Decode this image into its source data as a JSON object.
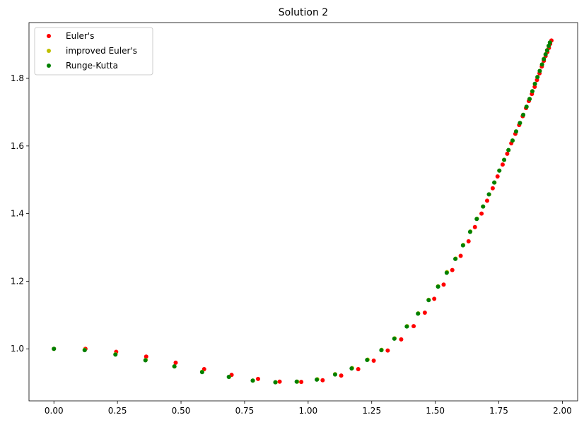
{
  "chart_data": {
    "type": "scatter",
    "title": "Solution 2",
    "xlabel": "",
    "ylabel": "",
    "xlim": [
      -0.098,
      2.06
    ],
    "ylim": [
      0.846,
      1.965
    ],
    "xticks": [
      "0.00",
      "0.25",
      "0.50",
      "0.75",
      "1.00",
      "1.25",
      "1.50",
      "1.75",
      "2.00"
    ],
    "xtick_values": [
      0,
      0.25,
      0.5,
      0.75,
      1.0,
      1.25,
      1.5,
      1.75,
      2.0
    ],
    "yticks": [
      "1.0",
      "1.2",
      "1.4",
      "1.6",
      "1.8"
    ],
    "ytick_values": [
      1.0,
      1.2,
      1.4,
      1.6,
      1.8
    ],
    "grid": false,
    "legend_position": "top-left",
    "series": [
      {
        "name": "Euler's",
        "color": "#ff0000",
        "points": [
          [
            0.0,
            1.0
          ],
          [
            0.124,
            1.0
          ],
          [
            0.245,
            0.991
          ],
          [
            0.363,
            0.977
          ],
          [
            0.479,
            0.959
          ],
          [
            0.591,
            0.94
          ],
          [
            0.699,
            0.923
          ],
          [
            0.803,
            0.911
          ],
          [
            0.888,
            0.903
          ],
          [
            0.973,
            0.902
          ],
          [
            1.057,
            0.907
          ],
          [
            1.13,
            0.921
          ],
          [
            1.197,
            0.94
          ],
          [
            1.258,
            0.965
          ],
          [
            1.313,
            0.995
          ],
          [
            1.366,
            1.028
          ],
          [
            1.415,
            1.067
          ],
          [
            1.459,
            1.107
          ],
          [
            1.496,
            1.148
          ],
          [
            1.533,
            1.19
          ],
          [
            1.567,
            1.233
          ],
          [
            1.6,
            1.275
          ],
          [
            1.631,
            1.318
          ],
          [
            1.656,
            1.36
          ],
          [
            1.682,
            1.4
          ],
          [
            1.704,
            1.438
          ],
          [
            1.726,
            1.475
          ],
          [
            1.745,
            1.51
          ],
          [
            1.765,
            1.545
          ],
          [
            1.783,
            1.577
          ],
          [
            1.799,
            1.608
          ],
          [
            1.815,
            1.636
          ],
          [
            1.83,
            1.662
          ],
          [
            1.844,
            1.688
          ],
          [
            1.857,
            1.712
          ],
          [
            1.868,
            1.733
          ],
          [
            1.88,
            1.754
          ],
          [
            1.891,
            1.775
          ],
          [
            1.9,
            1.795
          ],
          [
            1.91,
            1.815
          ],
          [
            1.919,
            1.835
          ],
          [
            1.927,
            1.852
          ],
          [
            1.934,
            1.866
          ],
          [
            1.941,
            1.878
          ],
          [
            1.947,
            1.89
          ],
          [
            1.952,
            1.902
          ],
          [
            1.957,
            1.912
          ]
        ]
      },
      {
        "name": "improved Euler's",
        "color": "#bfbf00",
        "points": [
          [
            0.0,
            1.0
          ],
          [
            0.121,
            0.997
          ],
          [
            0.242,
            0.984
          ],
          [
            0.361,
            0.967
          ],
          [
            0.474,
            0.948
          ],
          [
            0.583,
            0.932
          ],
          [
            0.689,
            0.917
          ],
          [
            0.783,
            0.906
          ],
          [
            0.872,
            0.901
          ],
          [
            0.957,
            0.903
          ],
          [
            1.036,
            0.91
          ],
          [
            1.106,
            0.925
          ],
          [
            1.173,
            0.943
          ],
          [
            1.234,
            0.968
          ],
          [
            1.289,
            0.997
          ],
          [
            1.34,
            1.031
          ],
          [
            1.389,
            1.067
          ],
          [
            1.433,
            1.105
          ],
          [
            1.474,
            1.145
          ],
          [
            1.511,
            1.185
          ],
          [
            1.546,
            1.227
          ],
          [
            1.58,
            1.267
          ],
          [
            1.61,
            1.307
          ],
          [
            1.638,
            1.347
          ],
          [
            1.664,
            1.385
          ],
          [
            1.688,
            1.421
          ],
          [
            1.712,
            1.457
          ],
          [
            1.733,
            1.492
          ],
          [
            1.752,
            1.527
          ],
          [
            1.771,
            1.559
          ],
          [
            1.788,
            1.588
          ],
          [
            1.804,
            1.616
          ],
          [
            1.818,
            1.643
          ],
          [
            1.833,
            1.668
          ],
          [
            1.846,
            1.692
          ],
          [
            1.859,
            1.716
          ],
          [
            1.871,
            1.739
          ],
          [
            1.882,
            1.762
          ],
          [
            1.892,
            1.784
          ],
          [
            1.902,
            1.804
          ],
          [
            1.911,
            1.822
          ],
          [
            1.92,
            1.841
          ],
          [
            1.927,
            1.857
          ],
          [
            1.934,
            1.871
          ],
          [
            1.94,
            1.883
          ],
          [
            1.946,
            1.896
          ],
          [
            1.951,
            1.906
          ]
        ]
      },
      {
        "name": "Runge-Kutta",
        "color": "#008000",
        "points": [
          [
            0.0,
            1.0
          ],
          [
            0.121,
            0.996
          ],
          [
            0.242,
            0.983
          ],
          [
            0.36,
            0.966
          ],
          [
            0.474,
            0.948
          ],
          [
            0.583,
            0.931
          ],
          [
            0.688,
            0.917
          ],
          [
            0.782,
            0.906
          ],
          [
            0.871,
            0.901
          ],
          [
            0.955,
            0.903
          ],
          [
            1.034,
            0.909
          ],
          [
            1.106,
            0.924
          ],
          [
            1.171,
            0.942
          ],
          [
            1.232,
            0.967
          ],
          [
            1.288,
            0.996
          ],
          [
            1.339,
            1.03
          ],
          [
            1.388,
            1.066
          ],
          [
            1.432,
            1.104
          ],
          [
            1.474,
            1.144
          ],
          [
            1.511,
            1.184
          ],
          [
            1.545,
            1.225
          ],
          [
            1.579,
            1.266
          ],
          [
            1.609,
            1.306
          ],
          [
            1.637,
            1.346
          ],
          [
            1.663,
            1.384
          ],
          [
            1.688,
            1.421
          ],
          [
            1.711,
            1.457
          ],
          [
            1.732,
            1.492
          ],
          [
            1.752,
            1.527
          ],
          [
            1.771,
            1.559
          ],
          [
            1.788,
            1.588
          ],
          [
            1.804,
            1.616
          ],
          [
            1.818,
            1.643
          ],
          [
            1.833,
            1.668
          ],
          [
            1.846,
            1.692
          ],
          [
            1.859,
            1.716
          ],
          [
            1.871,
            1.739
          ],
          [
            1.882,
            1.762
          ],
          [
            1.892,
            1.784
          ],
          [
            1.902,
            1.804
          ],
          [
            1.911,
            1.822
          ],
          [
            1.92,
            1.841
          ],
          [
            1.927,
            1.857
          ],
          [
            1.934,
            1.871
          ],
          [
            1.94,
            1.883
          ],
          [
            1.946,
            1.896
          ],
          [
            1.951,
            1.906
          ]
        ]
      }
    ]
  }
}
